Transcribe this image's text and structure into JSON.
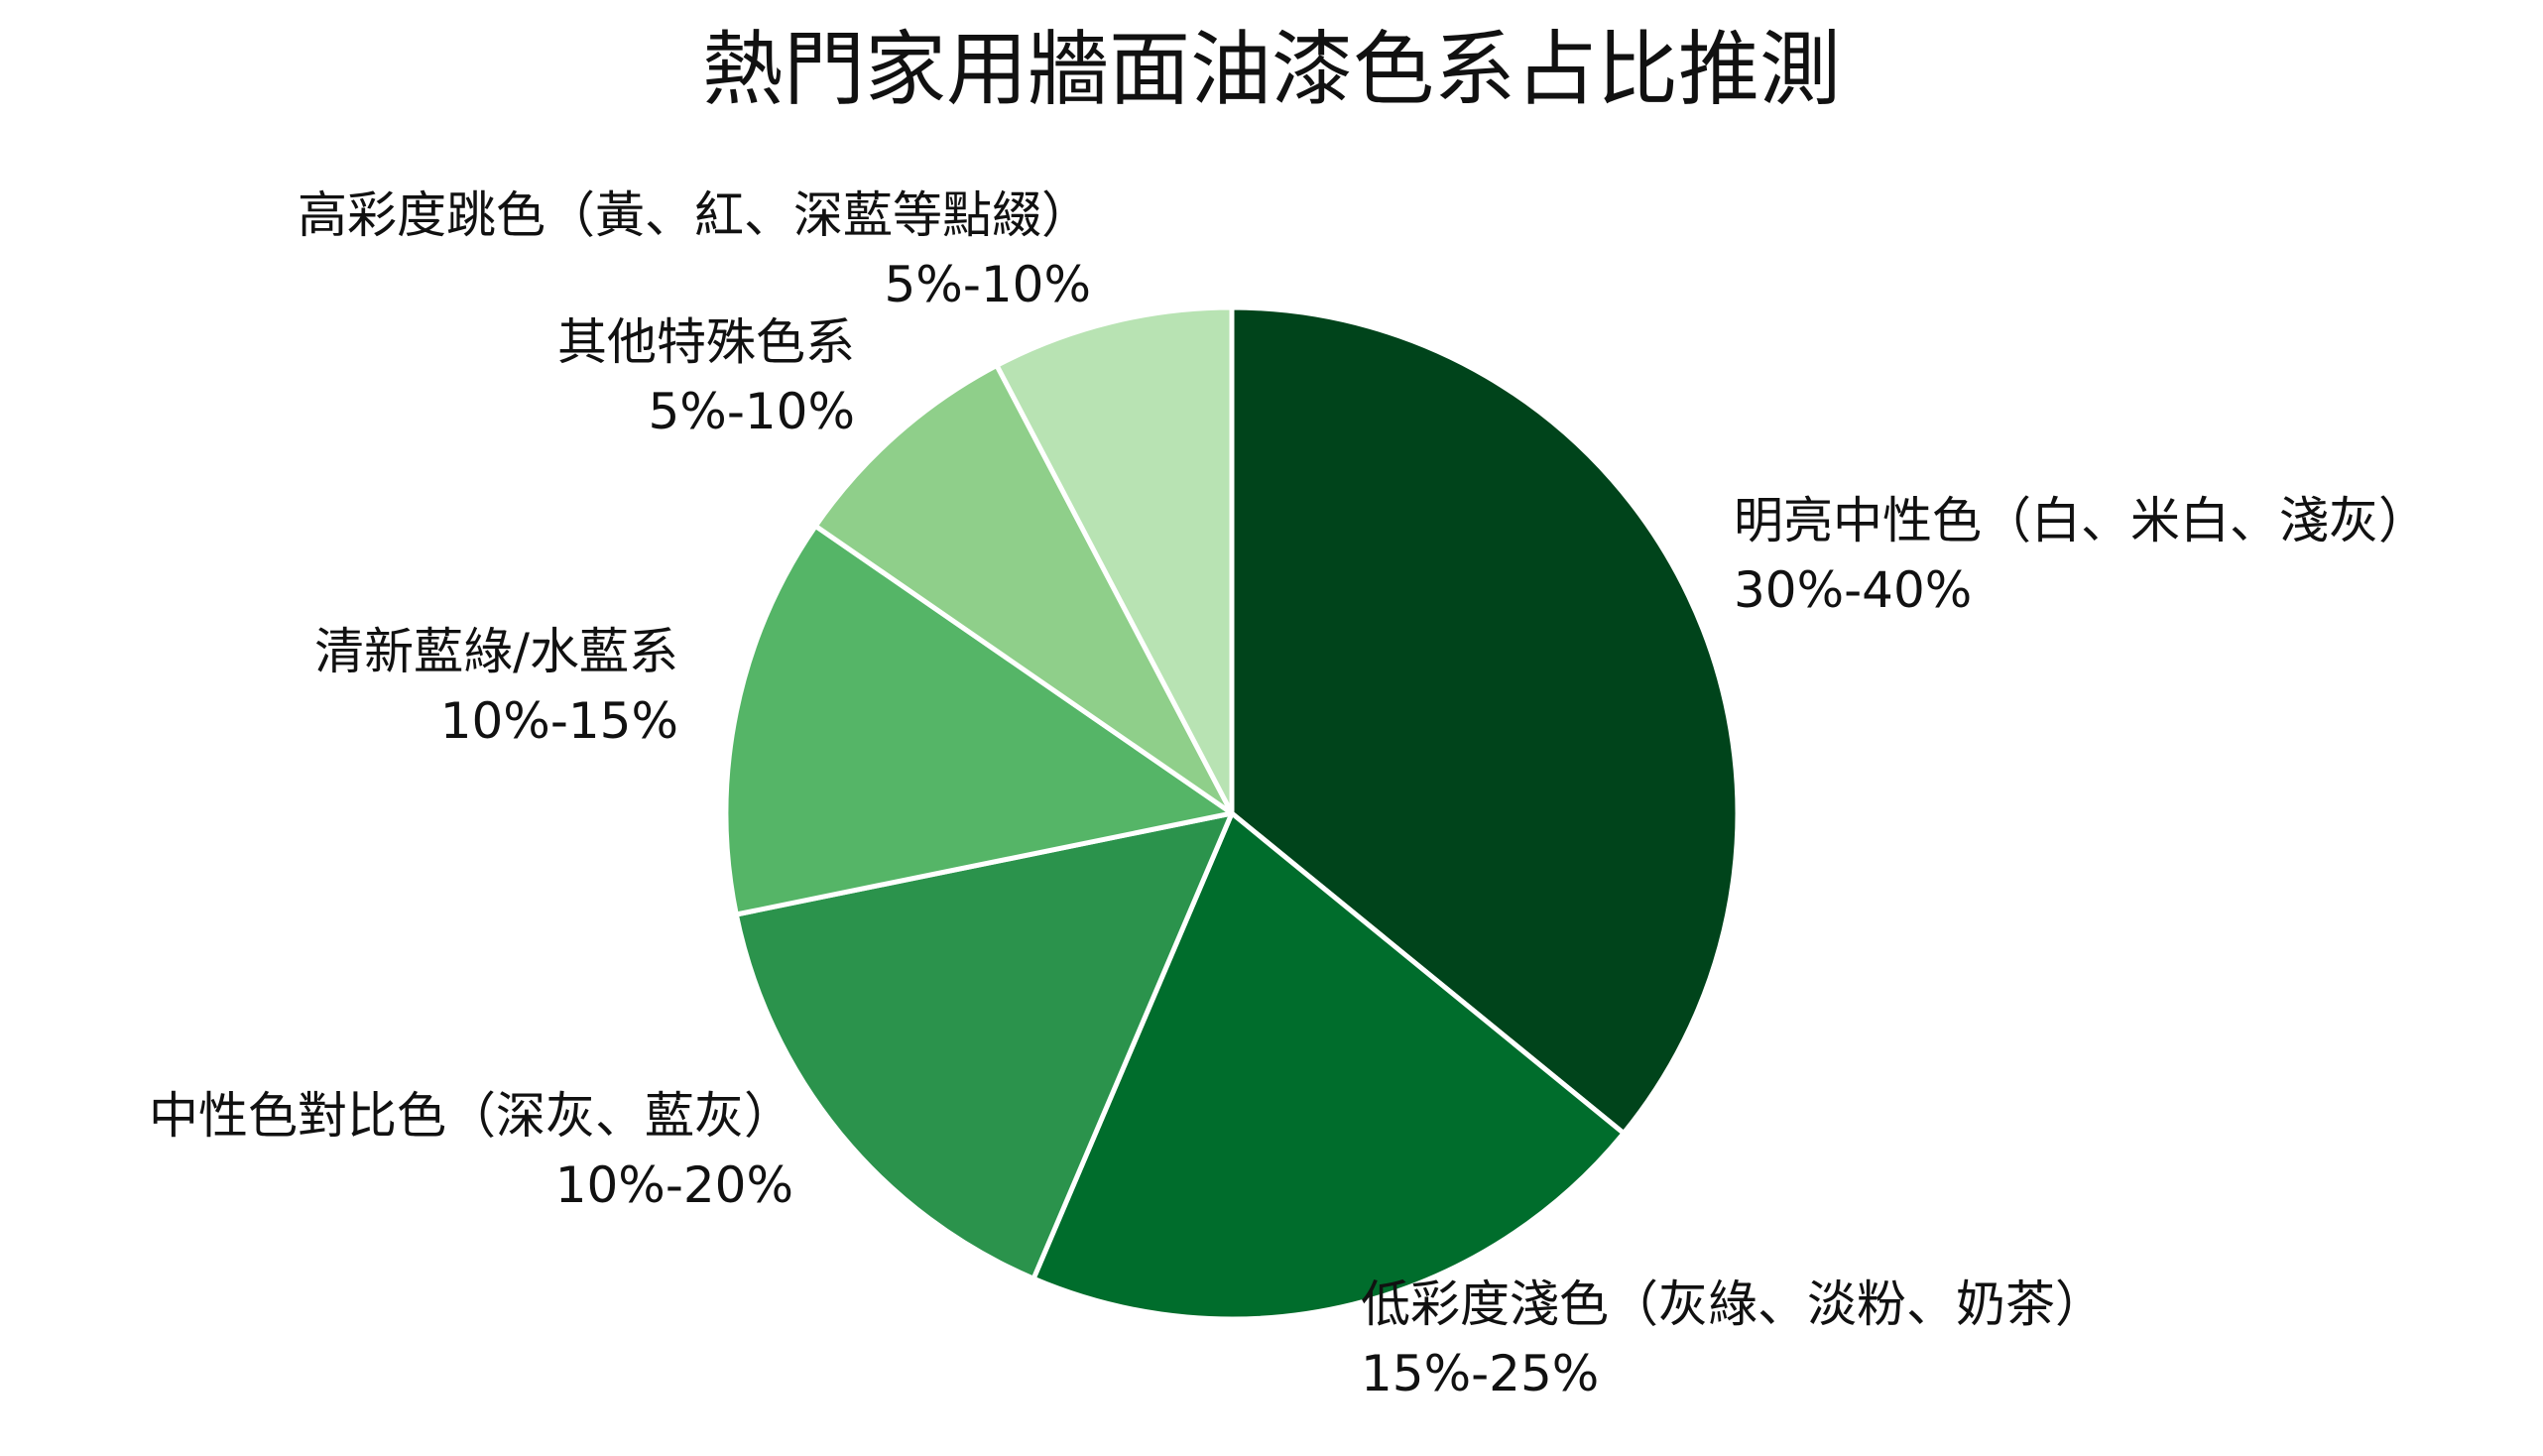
{
  "chart_data": {
    "type": "pie",
    "title": "熱門家用牆面油漆色系占比推測",
    "start": "12 o'clock",
    "direction": "clockwise",
    "slices": [
      {
        "label": "明亮中性色（白、米白、淺灰）",
        "range_text": "30%-40%",
        "value": 35,
        "color": "#00441b"
      },
      {
        "label": "低彩度淺色（灰綠、淡粉、奶茶）",
        "range_text": "15%-25%",
        "value": 20,
        "color": "#006d2c"
      },
      {
        "label": "中性色對比色（深灰、藍灰）",
        "range_text": "10%-20%",
        "value": 15,
        "color": "#2b934c"
      },
      {
        "label": "清新藍綠/水藍系",
        "range_text": "10%-15%",
        "value": 12.5,
        "color": "#55b567"
      },
      {
        "label": "其他特殊色系",
        "range_text": "5%-10%",
        "value": 7.5,
        "color": "#8fcf8a"
      },
      {
        "label": "高彩度跳色（黃、紅、深藍等點綴）",
        "range_text": "5%-10%",
        "value": 7.5,
        "color": "#b8e3b3"
      }
    ]
  }
}
